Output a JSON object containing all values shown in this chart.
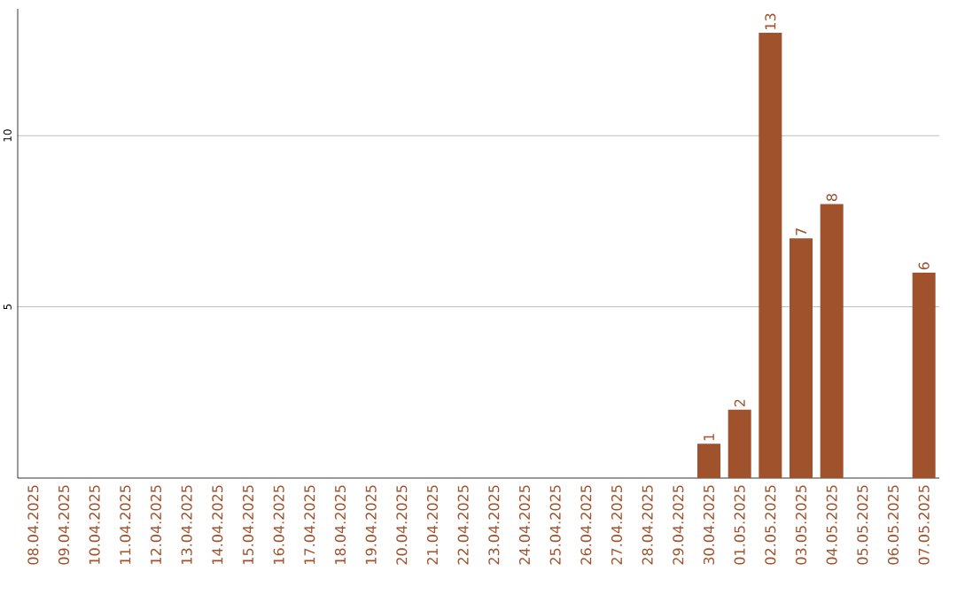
{
  "chart_data": {
    "type": "bar",
    "categories": [
      "08.04.2025",
      "09.04.2025",
      "10.04.2025",
      "11.04.2025",
      "12.04.2025",
      "13.04.2025",
      "14.04.2025",
      "15.04.2025",
      "16.04.2025",
      "17.04.2025",
      "18.04.2025",
      "19.04.2025",
      "20.04.2025",
      "21.04.2025",
      "22.04.2025",
      "23.04.2025",
      "24.04.2025",
      "25.04.2025",
      "26.04.2025",
      "27.04.2025",
      "28.04.2025",
      "29.04.2025",
      "30.04.2025",
      "01.05.2025",
      "02.05.2025",
      "03.05.2025",
      "04.05.2025",
      "05.05.2025",
      "06.05.2025",
      "07.05.2025"
    ],
    "values": [
      0,
      0,
      0,
      0,
      0,
      0,
      0,
      0,
      0,
      0,
      0,
      0,
      0,
      0,
      0,
      0,
      0,
      0,
      0,
      0,
      0,
      0,
      1,
      2,
      13,
      7,
      8,
      0,
      0,
      6
    ],
    "value_labels": [
      null,
      null,
      null,
      null,
      null,
      null,
      null,
      null,
      null,
      null,
      null,
      null,
      null,
      null,
      null,
      null,
      null,
      null,
      null,
      null,
      null,
      null,
      "1",
      "2",
      "13",
      "7",
      "8",
      null,
      null,
      "6"
    ],
    "color": "#a0522d",
    "ylim": [
      0,
      13.7
    ],
    "yticks": [
      5,
      10
    ],
    "grid": "y"
  }
}
